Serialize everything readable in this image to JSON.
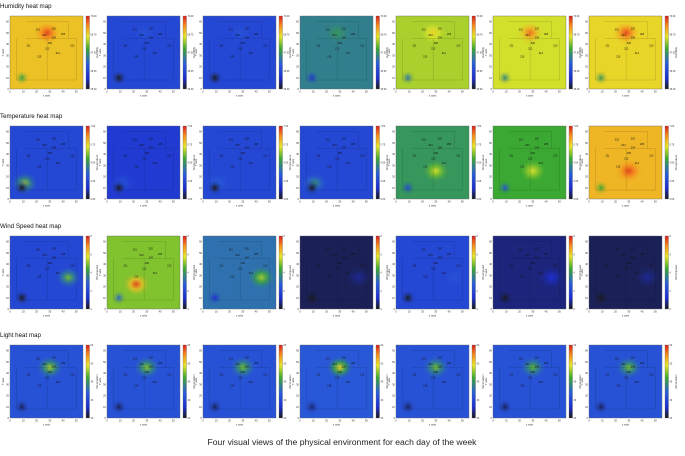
{
  "caption": "Four visual views of the physical environment for each day of the week",
  "chart_data": [
    {
      "type": "heatmap",
      "title": "Humidity heat map",
      "colorbar_label": "Humidity",
      "colorbar_ticks": [
        "70.00",
        "58.75",
        "47.50",
        "36.25",
        "25.00"
      ],
      "panel_count": 7,
      "x_ticks": [
        "0",
        "10",
        "20",
        "30",
        "40",
        "50"
      ],
      "y_ticks": [
        "0",
        "10",
        "20",
        "30",
        "40",
        "50",
        "60"
      ],
      "x_axis_label": "x axis",
      "y_axis_label": "Y axis",
      "level_by_day": [
        0.78,
        0.25,
        0.25,
        0.44,
        0.66,
        0.7,
        0.75
      ],
      "hotspot_by_day": [
        0.95,
        0.3,
        0.3,
        0.5,
        0.75,
        0.9,
        0.95
      ]
    },
    {
      "type": "heatmap",
      "title": "Temperature heat map",
      "colorbar_label": "Temperature",
      "colorbar_ticks": [
        "7.00",
        "5.75",
        "4.50",
        "3.25",
        "2.00"
      ],
      "panel_count": 7,
      "x_ticks": [
        "0",
        "10",
        "20",
        "30",
        "40",
        "50"
      ],
      "y_ticks": [
        "0",
        "10",
        "20",
        "30",
        "40",
        "50",
        "60"
      ],
      "x_axis_label": "x axis",
      "y_axis_label": "Y axis",
      "level_by_day": [
        0.25,
        0.2,
        0.25,
        0.25,
        0.5,
        0.55,
        0.8
      ],
      "hotspot_by_day": [
        0.65,
        0.3,
        0.35,
        0.5,
        0.7,
        0.7,
        0.95
      ]
    },
    {
      "type": "heatmap",
      "title": "Wind Speed heat map",
      "colorbar_label": "Wind speed",
      "colorbar_ticks": [
        "8",
        "6",
        "4",
        "2",
        "0"
      ],
      "panel_count": 7,
      "x_ticks": [
        "0",
        "10",
        "20",
        "30",
        "40",
        "50"
      ],
      "y_ticks": [
        "0",
        "10",
        "20",
        "30",
        "40",
        "50",
        "60"
      ],
      "x_axis_label": "x axis",
      "y_axis_label": "Y axis",
      "level_by_day": [
        0.25,
        0.62,
        0.4,
        0.05,
        0.25,
        0.08,
        0.05
      ],
      "hotspot_by_day": [
        0.6,
        0.95,
        0.65,
        0.1,
        0.3,
        0.15,
        0.1
      ]
    },
    {
      "type": "heatmap",
      "title": "Light heat map",
      "colorbar_label": "Illumination",
      "colorbar_ticks": [
        "60",
        "50",
        "40",
        "30",
        "20"
      ],
      "panel_count": 7,
      "x_ticks": [
        "0",
        "10",
        "20",
        "30",
        "40",
        "50"
      ],
      "y_ticks": [
        "0",
        "10",
        "20",
        "30",
        "40",
        "50",
        "60"
      ],
      "x_axis_label": "x axis",
      "y_axis_label": "Y axis",
      "level_by_day": [
        0.3,
        0.3,
        0.3,
        0.32,
        0.3,
        0.3,
        0.3
      ],
      "hotspot_by_day": [
        0.65,
        0.62,
        0.6,
        0.75,
        0.6,
        0.58,
        0.6
      ]
    }
  ],
  "sensors": [
    "201",
    "202",
    "203",
    "204",
    "205",
    "206",
    "211",
    "212",
    "213",
    "214",
    "215"
  ]
}
